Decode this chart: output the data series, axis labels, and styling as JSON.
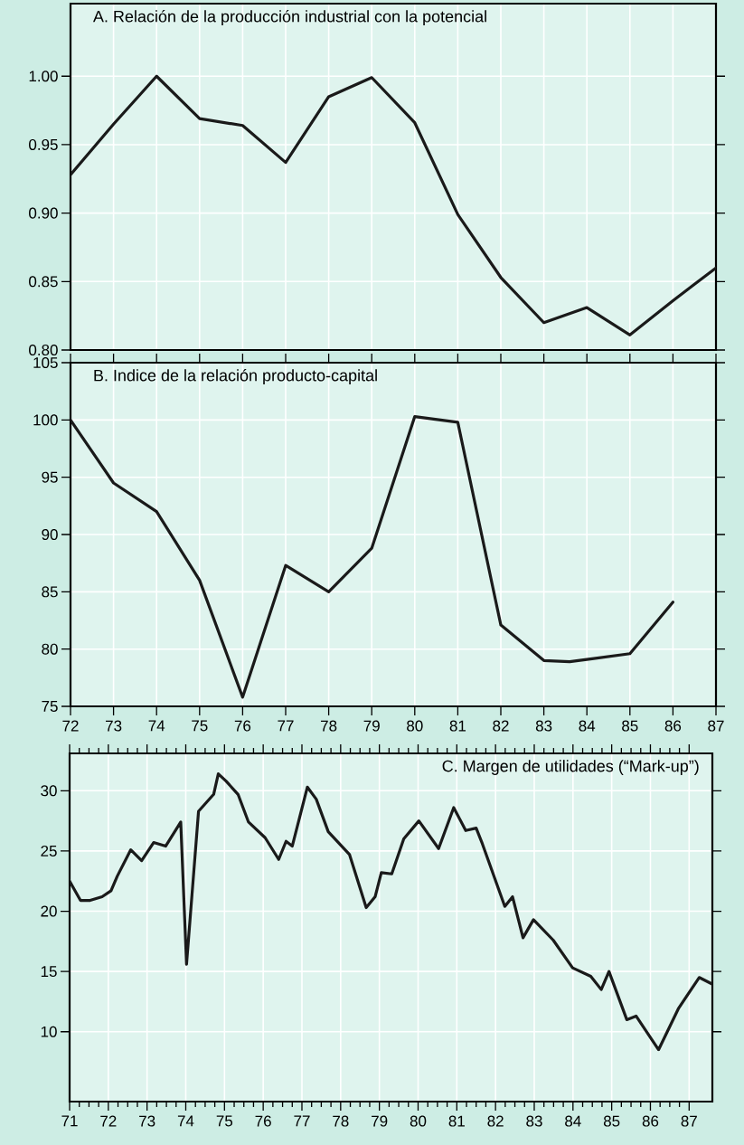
{
  "chart_data": [
    {
      "type": "line",
      "title": "A. Relación de la producción industrial con la potencial",
      "x": [
        72,
        73,
        74,
        75,
        76,
        77,
        78,
        79,
        80,
        81,
        82,
        83,
        84,
        85,
        86,
        87
      ],
      "values": [
        0.928,
        0.965,
        1.0,
        0.969,
        0.964,
        0.937,
        0.985,
        0.999,
        0.966,
        0.899,
        0.853,
        0.82,
        0.831,
        0.811,
        0.836,
        0.86
      ],
      "color": "#1a1a1a",
      "xlim": [
        72,
        87
      ],
      "xticks": [
        72,
        73,
        74,
        75,
        76,
        77,
        78,
        79,
        80,
        81,
        82,
        83,
        84,
        85,
        86,
        87
      ],
      "ylim": [
        0.8,
        1.053
      ],
      "yticks": [
        {
          "value": 0.8,
          "label": "0.80"
        },
        {
          "value": 0.85,
          "label": "0.85"
        },
        {
          "value": 0.9,
          "label": "0.90"
        },
        {
          "value": 0.95,
          "label": "0.95"
        },
        {
          "value": 1.0,
          "label": "1.00"
        }
      ],
      "grid": true,
      "tick_labels": "y"
    },
    {
      "type": "line",
      "title": "B. Indice de la relación producto-capital",
      "x": [
        72,
        73,
        74,
        75,
        76,
        77,
        78,
        79,
        80,
        81,
        82,
        83,
        83.6,
        84.2,
        85,
        86
      ],
      "values": [
        100,
        94.5,
        92.0,
        86.0,
        75.8,
        87.3,
        85.0,
        88.8,
        100.3,
        99.8,
        82.1,
        79.0,
        78.9,
        79.2,
        79.6,
        84.1
      ],
      "color": "#1a1a1a",
      "xlim": [
        72,
        87
      ],
      "xticks": [
        72,
        73,
        74,
        75,
        76,
        77,
        78,
        79,
        80,
        81,
        82,
        83,
        84,
        85,
        86,
        87
      ],
      "ylim": [
        75,
        105
      ],
      "yticks": [
        75,
        80,
        85,
        90,
        95,
        100,
        105
      ],
      "grid": true
    },
    {
      "type": "line",
      "title": "C. Margen de utilidades (“Mark-up”)",
      "x": [
        71.0,
        71.28,
        71.53,
        71.84,
        72.07,
        72.23,
        72.58,
        72.86,
        73.17,
        73.48,
        73.87,
        74.02,
        74.33,
        74.72,
        74.84,
        75.04,
        75.35,
        75.62,
        76.05,
        76.4,
        76.59,
        76.75,
        77.14,
        77.37,
        77.68,
        78.23,
        78.66,
        78.89,
        79.05,
        79.32,
        79.63,
        80.02,
        80.53,
        80.92,
        81.23,
        81.5,
        81.66,
        82.24,
        82.44,
        82.71,
        82.98,
        83.49,
        83.99,
        84.46,
        84.73,
        84.93,
        85.39,
        85.63,
        86.21,
        86.72,
        87.26,
        87.57
      ],
      "values": [
        22.5,
        20.9,
        20.9,
        21.2,
        21.7,
        22.9,
        25.1,
        24.2,
        25.7,
        25.4,
        27.4,
        15.6,
        28.3,
        29.7,
        31.4,
        30.8,
        29.7,
        27.4,
        26.1,
        24.3,
        25.8,
        25.4,
        30.3,
        29.3,
        26.6,
        24.7,
        20.3,
        21.2,
        23.2,
        23.1,
        26.0,
        27.5,
        25.2,
        28.6,
        26.7,
        26.9,
        25.6,
        20.4,
        21.2,
        17.8,
        19.3,
        17.6,
        15.3,
        14.6,
        13.5,
        15.0,
        11.0,
        11.3,
        8.5,
        11.9,
        14.5,
        14.0
      ],
      "color": "#1a1a1a",
      "xlim": [
        71,
        87.6
      ],
      "xticks": [
        71,
        72,
        73,
        74,
        75,
        76,
        77,
        78,
        79,
        80,
        81,
        82,
        83,
        84,
        85,
        86,
        87
      ],
      "ylim": [
        4.2,
        33.1
      ],
      "yticks": [
        10,
        15,
        20,
        25,
        30
      ],
      "grid": true
    }
  ]
}
